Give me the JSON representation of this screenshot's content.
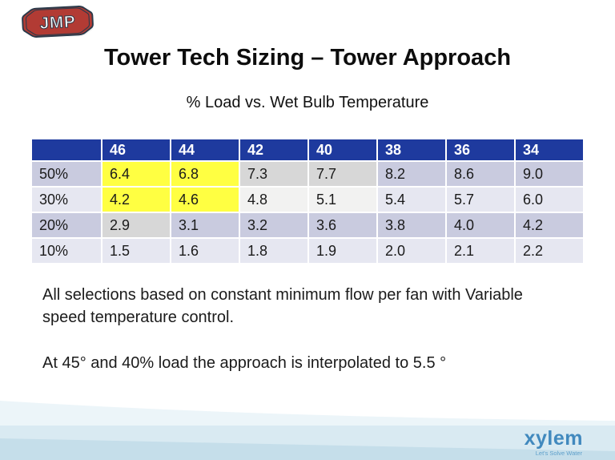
{
  "slide": {
    "logo_text": "JMP",
    "title": "Tower Tech Sizing – Tower Approach",
    "subtitle": "% Load vs. Wet Bulb Temperature",
    "table": {
      "columns": [
        "",
        "46",
        "44",
        "42",
        "40",
        "38",
        "36",
        "34"
      ],
      "rows": [
        {
          "label": "50%",
          "label_bg": "row_dark",
          "cells": [
            {
              "v": "6.4",
              "bg": "highlight"
            },
            {
              "v": "6.8",
              "bg": "highlight"
            },
            {
              "v": "7.3",
              "bg": "gray_dark"
            },
            {
              "v": "7.7",
              "bg": "gray_dark"
            },
            {
              "v": "8.2",
              "bg": "row_dark"
            },
            {
              "v": "8.6",
              "bg": "row_dark"
            },
            {
              "v": "9.0",
              "bg": "row_dark"
            }
          ]
        },
        {
          "label": "30%",
          "label_bg": "row_light",
          "cells": [
            {
              "v": "4.2",
              "bg": "highlight"
            },
            {
              "v": "4.6",
              "bg": "highlight"
            },
            {
              "v": "4.8",
              "bg": "gray_light"
            },
            {
              "v": "5.1",
              "bg": "gray_light"
            },
            {
              "v": "5.4",
              "bg": "row_light"
            },
            {
              "v": "5.7",
              "bg": "row_light"
            },
            {
              "v": "6.0",
              "bg": "row_light"
            }
          ]
        },
        {
          "label": "20%",
          "label_bg": "row_dark",
          "cells": [
            {
              "v": "2.9",
              "bg": "gray_dark"
            },
            {
              "v": "3.1",
              "bg": "row_dark"
            },
            {
              "v": "3.2",
              "bg": "row_dark"
            },
            {
              "v": "3.6",
              "bg": "row_dark"
            },
            {
              "v": "3.8",
              "bg": "row_dark"
            },
            {
              "v": "4.0",
              "bg": "row_dark"
            },
            {
              "v": "4.2",
              "bg": "row_dark"
            }
          ]
        },
        {
          "label": "10%",
          "label_bg": "row_light",
          "cells": [
            {
              "v": "1.5",
              "bg": "row_light"
            },
            {
              "v": "1.6",
              "bg": "row_light"
            },
            {
              "v": "1.8",
              "bg": "row_light"
            },
            {
              "v": "1.9",
              "bg": "row_light"
            },
            {
              "v": "2.0",
              "bg": "row_light"
            },
            {
              "v": "2.1",
              "bg": "row_light"
            },
            {
              "v": "2.2",
              "bg": "row_light"
            }
          ]
        }
      ]
    },
    "notes": [
      "All selections based on constant minimum flow per fan with Variable\nspeed temperature control.",
      "At 45° and 40% load the approach is interpolated to 5.5 °"
    ],
    "brand": {
      "name": "xylem",
      "tagline": "Let's Solve Water"
    }
  },
  "chart_data": {
    "type": "table",
    "title": "% Load vs. Wet Bulb Temperature",
    "columns": [
      "46",
      "44",
      "42",
      "40",
      "38",
      "36",
      "34"
    ],
    "row_labels": [
      "50%",
      "30%",
      "20%",
      "10%"
    ],
    "values": [
      [
        6.4,
        6.8,
        7.3,
        7.7,
        8.2,
        8.6,
        9.0
      ],
      [
        4.2,
        4.6,
        4.8,
        5.1,
        5.4,
        5.7,
        6.0
      ],
      [
        2.9,
        3.1,
        3.2,
        3.6,
        3.8,
        4.0,
        4.2
      ],
      [
        1.5,
        1.6,
        1.8,
        1.9,
        2.0,
        2.1,
        2.2
      ]
    ],
    "highlighted_cells": [
      [
        "50%",
        "46"
      ],
      [
        "50%",
        "44"
      ],
      [
        "30%",
        "46"
      ],
      [
        "30%",
        "44"
      ]
    ]
  },
  "colors": {
    "header_bg": "#1E3A9E",
    "header_text": "#FFFFFF",
    "row_dark": "#C9CBDF",
    "row_light": "#E6E7F1",
    "gray_dark": "#D7D7D7",
    "gray_light": "#F2F2F1",
    "highlight": "#FFFF42",
    "footer_band_1": "#ECF5F9",
    "footer_band_2": "#D9EAF2",
    "footer_band_3": "#C5DEEA",
    "logo_red": "#B23B34",
    "logo_navy": "#2B3A4A",
    "xylem_blue": "#4189BE",
    "xylem_tagline_blue": "#5FA0CB"
  }
}
